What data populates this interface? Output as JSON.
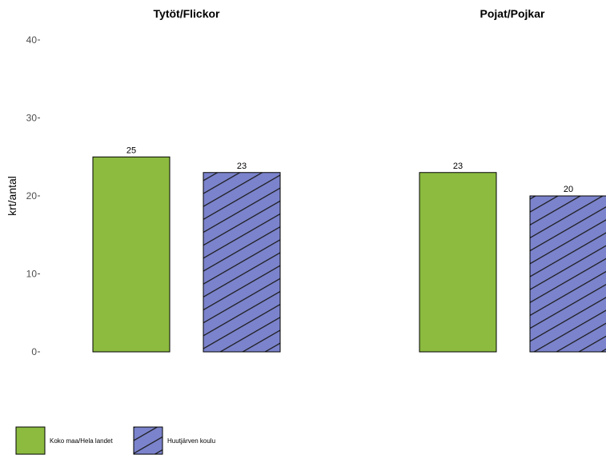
{
  "chart_data": {
    "type": "bar",
    "ylabel": "krt/antal",
    "ylim": [
      0,
      40
    ],
    "yticks": [
      0,
      10,
      20,
      30,
      40
    ],
    "grid": false,
    "legend_position": "bottom-left",
    "series": [
      {
        "name": "Koko maa/Hela landet",
        "color": "#8cbb3f",
        "pattern": "none"
      },
      {
        "name": "Huutjärven koulu",
        "color": "#7b83cc",
        "pattern": "diagonal-hatch"
      }
    ],
    "panels": [
      {
        "title": "Tytöt/Flickor",
        "values": [
          25,
          23
        ]
      },
      {
        "title": "Pojat/Pojkar",
        "values": [
          23,
          20
        ]
      }
    ]
  }
}
